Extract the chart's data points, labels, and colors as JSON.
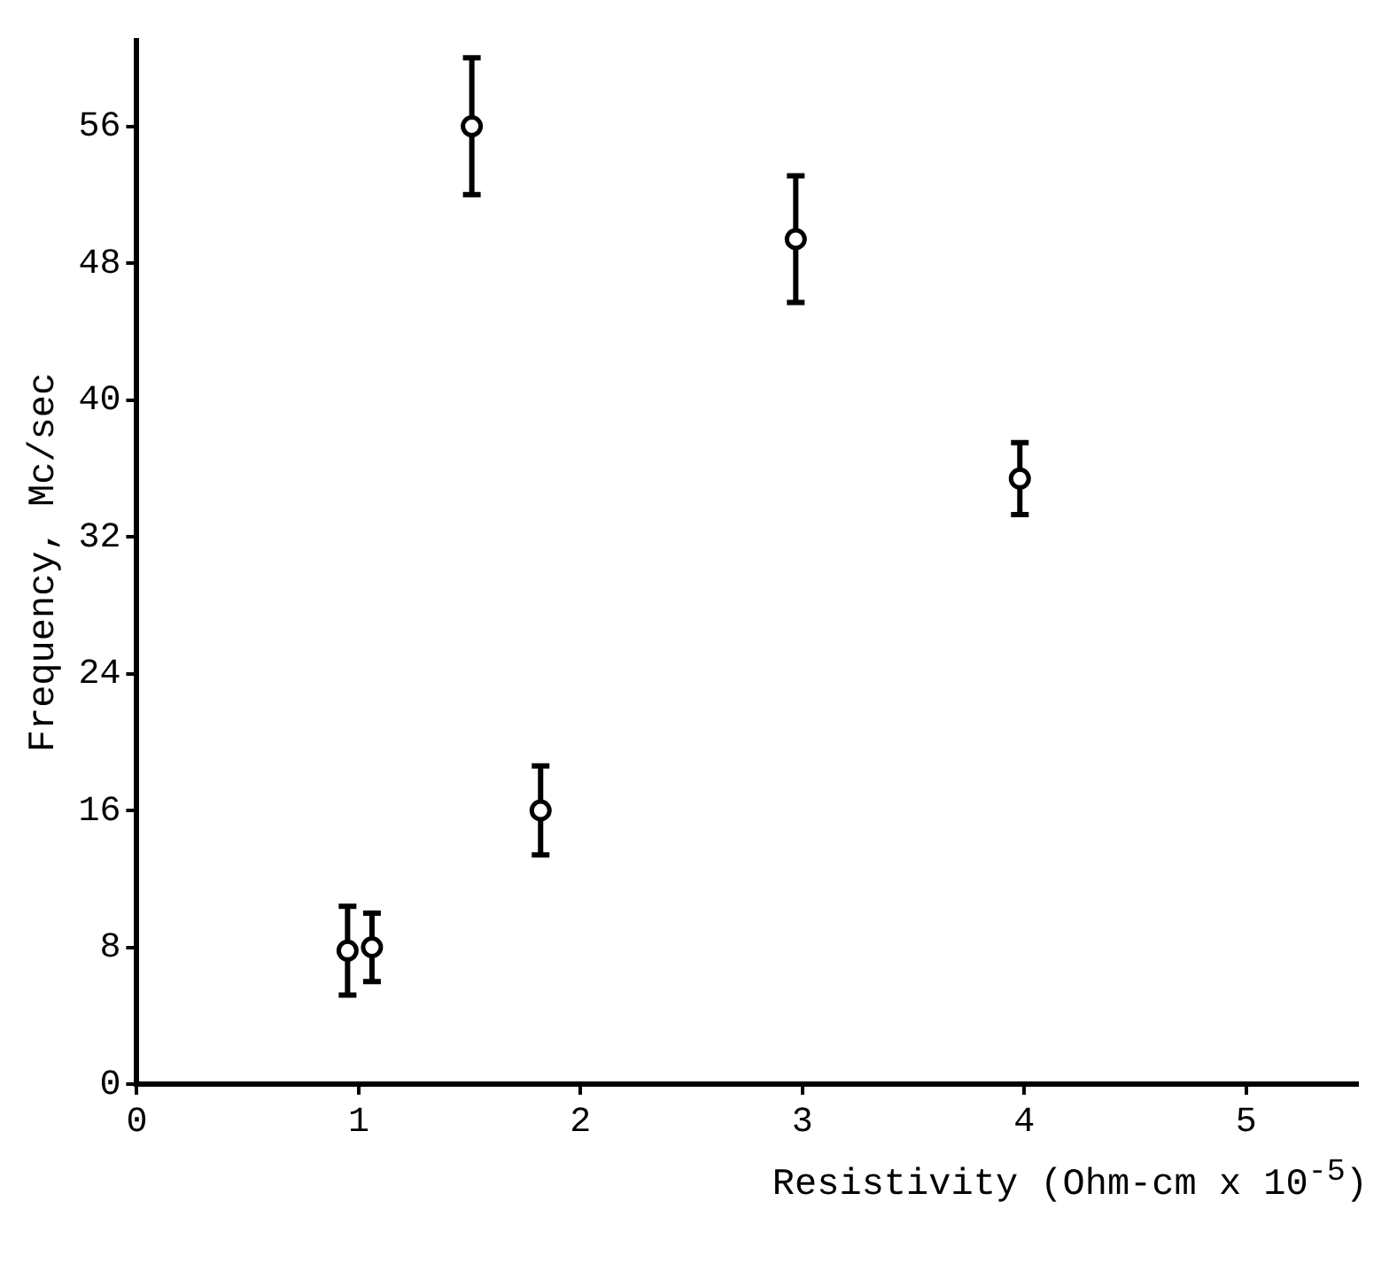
{
  "chart_data": {
    "type": "scatter",
    "xlabel": "Resistivity (Ohm-cm x 10$^{-5}$)",
    "ylabel": "Frequency, Mc/sec",
    "x": [
      0.95,
      1.06,
      1.82,
      1.51,
      2.97,
      3.98
    ],
    "values": [
      7.8,
      8.0,
      16.0,
      56.0,
      49.4,
      35.4
    ],
    "errors": [
      2.6,
      2.0,
      2.6,
      4.0,
      3.7,
      2.1
    ],
    "color": "#000000",
    "marker": "circle",
    "xlim": [
      0,
      5.5
    ],
    "xticks": [
      0,
      1,
      2,
      3,
      4,
      5
    ],
    "ylim": [
      0,
      61
    ],
    "yticks": [
      0,
      8,
      16,
      24,
      32,
      40,
      48,
      56
    ],
    "grid": false,
    "legend": false
  }
}
